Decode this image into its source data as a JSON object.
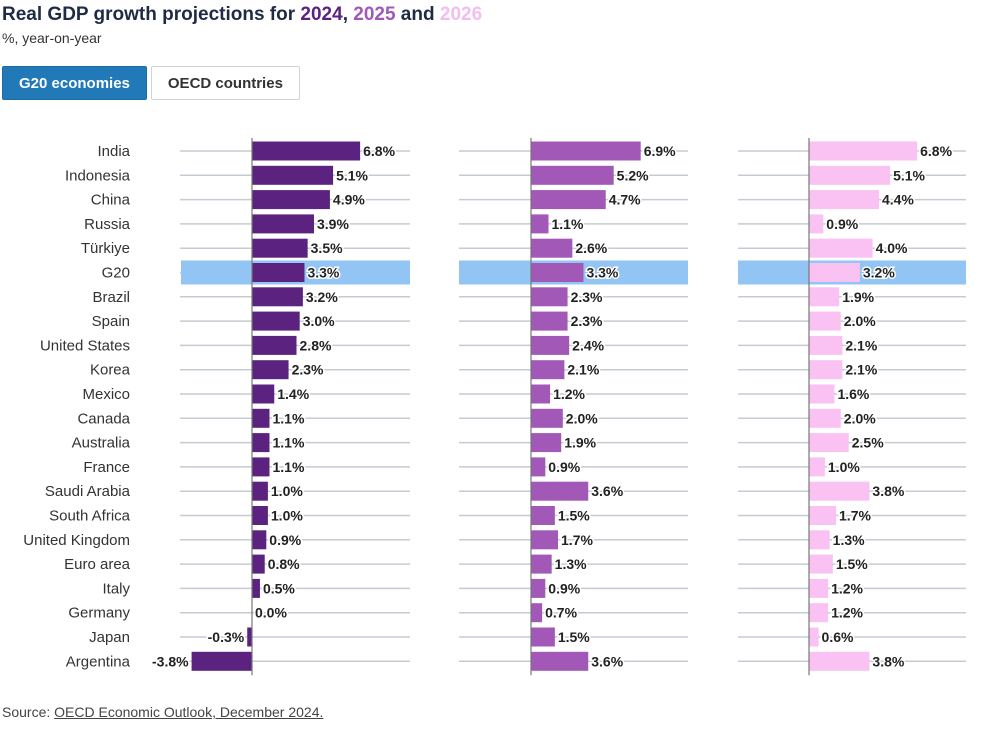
{
  "header": {
    "title_prefix": "Real GDP growth projections for ",
    "year1": "2024",
    "sep1": ", ",
    "year2": "2025",
    "sep2": " and ",
    "year3": "2026",
    "subtitle": "%, year-on-year"
  },
  "tabs": [
    {
      "label": "G20 economies",
      "active": true
    },
    {
      "label": "OECD countries",
      "active": false
    }
  ],
  "source": {
    "prefix": "Source: ",
    "link_text": "OECD Economic Outlook, December 2024."
  },
  "colors": {
    "y2024": "#5b2280",
    "y2025": "#a158b6",
    "y2026": "#f9c2f2",
    "highlight": "#92c5f4",
    "gridline": "#c4cbd3",
    "axis": "#777777"
  },
  "chart_data": {
    "type": "bar",
    "orientation": "horizontal",
    "title": "Real GDP growth projections for 2024, 2025 and 2026",
    "unit": "%",
    "highlight_category": "G20",
    "categories": [
      "India",
      "Indonesia",
      "China",
      "Russia",
      "Türkiye",
      "G20",
      "Brazil",
      "Spain",
      "United States",
      "Korea",
      "Mexico",
      "Canada",
      "Australia",
      "France",
      "Saudi Arabia",
      "South Africa",
      "United Kingdom",
      "Euro area",
      "Italy",
      "Germany",
      "Japan",
      "Argentina"
    ],
    "series": [
      {
        "name": "2024",
        "values": [
          6.8,
          5.1,
          4.9,
          3.9,
          3.5,
          3.3,
          3.2,
          3.0,
          2.8,
          2.3,
          1.4,
          1.1,
          1.1,
          1.1,
          1.0,
          1.0,
          0.9,
          0.8,
          0.5,
          0.0,
          -0.3,
          -3.8
        ]
      },
      {
        "name": "2025",
        "values": [
          6.9,
          5.2,
          4.7,
          1.1,
          2.6,
          3.3,
          2.3,
          2.3,
          2.4,
          2.1,
          1.2,
          2.0,
          1.9,
          0.9,
          3.6,
          1.5,
          1.7,
          1.3,
          0.9,
          0.7,
          1.5,
          3.6
        ]
      },
      {
        "name": "2026",
        "values": [
          6.8,
          5.1,
          4.4,
          0.9,
          4.0,
          3.2,
          1.9,
          2.0,
          2.1,
          2.1,
          1.6,
          2.0,
          2.5,
          1.0,
          3.8,
          1.7,
          1.3,
          1.5,
          1.2,
          1.2,
          0.6,
          3.8
        ]
      }
    ]
  }
}
